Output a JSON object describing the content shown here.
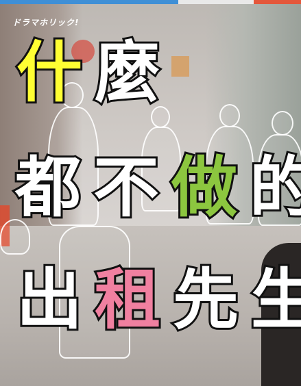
{
  "logo": {
    "text": "ドラマホリック!"
  },
  "title": {
    "line1": [
      {
        "char": "什",
        "color": "#ffff33"
      },
      {
        "char": "麼",
        "color": "#ffffff"
      }
    ],
    "line2": [
      {
        "char": "都",
        "color": "#ffffff"
      },
      {
        "char": "不",
        "color": "#ffffff"
      },
      {
        "char": "做",
        "color": "#8cc63f"
      },
      {
        "char": "的",
        "color": "#ffffff"
      }
    ],
    "line3": [
      {
        "char": "出",
        "color": "#ffffff"
      },
      {
        "char": "租",
        "color": "#f080a0"
      },
      {
        "char": "先",
        "color": "#ffffff"
      },
      {
        "char": "生",
        "color": "#ffffff"
      }
    ]
  },
  "topbar_colors": [
    "#3f8fd6",
    "#e9e9e9",
    "#e4573b"
  ]
}
